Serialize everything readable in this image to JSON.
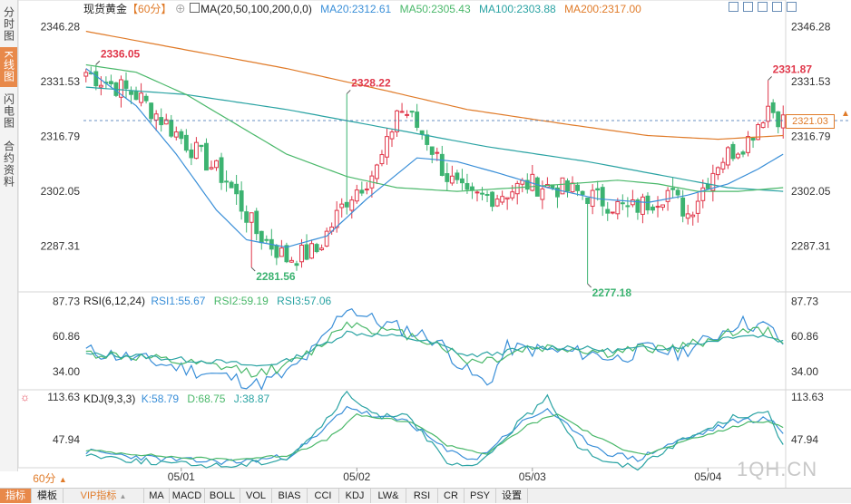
{
  "left_tabs": [
    {
      "label": "分时图",
      "active": false
    },
    {
      "label": "K线图",
      "active": true
    },
    {
      "label": "闪电图",
      "active": false
    },
    {
      "label": "合约资料",
      "active": false
    }
  ],
  "legend": {
    "name": "现货黄金",
    "period": "【60分】",
    "ma_label": "MA(20,50,100,200,0,0)",
    "ma20": "MA20:2312.61",
    "ma50": "MA50:2305.43",
    "ma100": "MA100:2303.88",
    "ma200": "MA200:2317.00"
  },
  "rsi_legend": {
    "label": "RSI(6,12,24)",
    "rsi1": "RSI1:55.67",
    "rsi2": "RSI2:59.19",
    "rsi3": "RSI3:57.06"
  },
  "kdj_legend": {
    "label": "KDJ(9,3,3)",
    "k": "K:58.79",
    "d": "D:68.75",
    "j": "J:38.87"
  },
  "current_price": "2321.03",
  "period_selector": "60分",
  "watermark": "1QH.CN",
  "bottom_tabs": [
    {
      "label": "指标",
      "active": true
    },
    {
      "label": "模板",
      "active": false
    },
    {
      "label": "VIP指标",
      "active": false,
      "orange": true
    },
    {
      "label": "MA",
      "active": false
    },
    {
      "label": "MACD",
      "active": false
    },
    {
      "label": "BOLL",
      "active": false
    },
    {
      "label": "VOL",
      "active": false
    },
    {
      "label": "BIAS",
      "active": false
    },
    {
      "label": "CCI",
      "active": false
    },
    {
      "label": "KDJ",
      "active": false
    },
    {
      "label": "LW&",
      "active": false
    },
    {
      "label": "RSI",
      "active": false
    },
    {
      "label": "CR",
      "active": false
    },
    {
      "label": "PSY",
      "active": false
    },
    {
      "label": "设置",
      "active": false
    }
  ],
  "colors": {
    "up": "#e0374a",
    "down": "#3cb371",
    "ma20": "#3a8fd8",
    "ma50": "#4ab86a",
    "ma100": "#2aa3a3",
    "ma200": "#e07b29",
    "rsi1": "#3a8fd8",
    "rsi2": "#4ab86a",
    "rsi3": "#2aa3a3",
    "k": "#3a8fd8",
    "d": "#4ab86a",
    "j": "#2aa3a3"
  },
  "chart_data": [
    {
      "type": "candlestick",
      "title": "现货黄金",
      "yticks": [
        2346.28,
        2331.53,
        2316.79,
        2302.05,
        2287.31
      ],
      "ylim": [
        2275,
        2350
      ],
      "x_ticks": [
        "05/01",
        "05/02",
        "05/03",
        "05/04"
      ],
      "annotations": [
        {
          "text": "2336.05",
          "value": 2336.05,
          "candle": 2,
          "color": "up"
        },
        {
          "text": "2328.22",
          "value": 2328.22,
          "candle": 52,
          "color": "up"
        },
        {
          "text": "2331.87",
          "value": 2331.87,
          "candle": 136,
          "color": "up"
        },
        {
          "text": "2281.56",
          "value": 2281.56,
          "candle": 33,
          "color": "down"
        },
        {
          "text": "2277.18",
          "value": 2277.18,
          "candle": 100,
          "color": "down"
        }
      ],
      "close_anchors": [
        [
          0,
          2334
        ],
        [
          3,
          2332
        ],
        [
          10,
          2328
        ],
        [
          20,
          2315
        ],
        [
          28,
          2305
        ],
        [
          34,
          2291
        ],
        [
          40,
          2284
        ],
        [
          46,
          2286
        ],
        [
          52,
          2300
        ],
        [
          58,
          2308
        ],
        [
          60,
          2314
        ],
        [
          62,
          2324
        ],
        [
          64,
          2323
        ],
        [
          68,
          2316
        ],
        [
          72,
          2306
        ],
        [
          76,
          2300
        ],
        [
          82,
          2301
        ],
        [
          88,
          2304
        ],
        [
          94,
          2303
        ],
        [
          100,
          2301
        ],
        [
          104,
          2299
        ],
        [
          108,
          2297
        ],
        [
          112,
          2299
        ],
        [
          116,
          2302
        ],
        [
          120,
          2296
        ],
        [
          126,
          2310
        ],
        [
          132,
          2316
        ],
        [
          136,
          2325
        ],
        [
          139,
          2321
        ]
      ],
      "ma20_anchors": [
        [
          0,
          2335
        ],
        [
          10,
          2325
        ],
        [
          18,
          2312
        ],
        [
          26,
          2297
        ],
        [
          32,
          2289
        ],
        [
          40,
          2287
        ],
        [
          48,
          2290
        ],
        [
          56,
          2300
        ],
        [
          66,
          2311
        ],
        [
          74,
          2310
        ],
        [
          82,
          2307
        ],
        [
          92,
          2303
        ],
        [
          102,
          2300
        ],
        [
          112,
          2299
        ],
        [
          120,
          2301
        ],
        [
          128,
          2304
        ],
        [
          134,
          2308
        ],
        [
          139,
          2312
        ]
      ],
      "ma50_anchors": [
        [
          0,
          2336
        ],
        [
          10,
          2334
        ],
        [
          20,
          2328
        ],
        [
          30,
          2320
        ],
        [
          40,
          2312
        ],
        [
          52,
          2306
        ],
        [
          62,
          2303
        ],
        [
          74,
          2302
        ],
        [
          86,
          2303
        ],
        [
          96,
          2304
        ],
        [
          106,
          2305
        ],
        [
          114,
          2304
        ],
        [
          122,
          2302
        ],
        [
          130,
          2302
        ],
        [
          139,
          2303
        ]
      ],
      "ma100_anchors": [
        [
          0,
          2330
        ],
        [
          20,
          2328
        ],
        [
          40,
          2324
        ],
        [
          60,
          2319
        ],
        [
          80,
          2314
        ],
        [
          100,
          2310
        ],
        [
          116,
          2306
        ],
        [
          128,
          2303
        ],
        [
          139,
          2302
        ]
      ],
      "ma200_anchors": [
        [
          0,
          2345
        ],
        [
          20,
          2340
        ],
        [
          40,
          2335
        ],
        [
          60,
          2329
        ],
        [
          76,
          2324
        ],
        [
          96,
          2320
        ],
        [
          112,
          2317
        ],
        [
          126,
          2316
        ],
        [
          139,
          2317
        ]
      ]
    },
    {
      "type": "line",
      "title": "RSI(6,12,24)",
      "yticks": [
        87.73,
        60.86,
        34.0
      ],
      "ylim": [
        20,
        95
      ],
      "series": [
        {
          "name": "RSI1",
          "values_anchors": [
            [
              0,
              50
            ],
            [
              10,
              44
            ],
            [
              20,
              36
            ],
            [
              28,
              30
            ],
            [
              34,
              24
            ],
            [
              40,
              32
            ],
            [
              46,
              52
            ],
            [
              52,
              84
            ],
            [
              58,
              72
            ],
            [
              64,
              66
            ],
            [
              70,
              58
            ],
            [
              76,
              34
            ],
            [
              80,
              24
            ],
            [
              84,
              52
            ],
            [
              92,
              50
            ],
            [
              100,
              48
            ],
            [
              106,
              44
            ],
            [
              112,
              52
            ],
            [
              118,
              48
            ],
            [
              124,
              58
            ],
            [
              130,
              72
            ],
            [
              136,
              68
            ],
            [
              139,
              56
            ]
          ]
        },
        {
          "name": "RSI2",
          "values_anchors": [
            [
              0,
              48
            ],
            [
              10,
              45
            ],
            [
              20,
              40
            ],
            [
              28,
              37
            ],
            [
              34,
              33
            ],
            [
              40,
              38
            ],
            [
              46,
              52
            ],
            [
              52,
              72
            ],
            [
              58,
              66
            ],
            [
              64,
              62
            ],
            [
              70,
              56
            ],
            [
              76,
              42
            ],
            [
              82,
              44
            ],
            [
              88,
              52
            ],
            [
              96,
              52
            ],
            [
              104,
              48
            ],
            [
              112,
              52
            ],
            [
              118,
              52
            ],
            [
              124,
              58
            ],
            [
              130,
              66
            ],
            [
              136,
              64
            ],
            [
              139,
              59
            ]
          ]
        },
        {
          "name": "RSI3",
          "values_anchors": [
            [
              0,
              47
            ],
            [
              10,
              46
            ],
            [
              20,
              43
            ],
            [
              28,
              41
            ],
            [
              34,
              38
            ],
            [
              40,
              42
            ],
            [
              46,
              52
            ],
            [
              52,
              64
            ],
            [
              58,
              62
            ],
            [
              64,
              60
            ],
            [
              70,
              55
            ],
            [
              76,
              46
            ],
            [
              82,
              48
            ],
            [
              88,
              52
            ],
            [
              96,
              53
            ],
            [
              104,
              50
            ],
            [
              112,
              52
            ],
            [
              118,
              53
            ],
            [
              124,
              57
            ],
            [
              130,
              62
            ],
            [
              136,
              61
            ],
            [
              139,
              57
            ]
          ]
        }
      ]
    },
    {
      "type": "line",
      "title": "KDJ(9,3,3)",
      "yticks": [
        113.63,
        47.94
      ],
      "ylim": [
        5,
        125
      ],
      "series": [
        {
          "name": "K",
          "values_anchors": [
            [
              0,
              30
            ],
            [
              10,
              22
            ],
            [
              20,
              16
            ],
            [
              30,
              14
            ],
            [
              40,
              22
            ],
            [
              46,
              52
            ],
            [
              52,
              100
            ],
            [
              58,
              82
            ],
            [
              64,
              78
            ],
            [
              72,
              30
            ],
            [
              78,
              18
            ],
            [
              86,
              70
            ],
            [
              92,
              96
            ],
            [
              98,
              54
            ],
            [
              104,
              28
            ],
            [
              110,
              18
            ],
            [
              116,
              40
            ],
            [
              122,
              56
            ],
            [
              130,
              78
            ],
            [
              136,
              80
            ],
            [
              139,
              59
            ]
          ]
        },
        {
          "name": "D",
          "values_anchors": [
            [
              0,
              32
            ],
            [
              10,
              26
            ],
            [
              20,
              20
            ],
            [
              30,
              18
            ],
            [
              40,
              24
            ],
            [
              48,
              48
            ],
            [
              54,
              86
            ],
            [
              60,
              80
            ],
            [
              66,
              72
            ],
            [
              72,
              40
            ],
            [
              80,
              26
            ],
            [
              88,
              70
            ],
            [
              94,
              88
            ],
            [
              100,
              60
            ],
            [
              106,
              36
            ],
            [
              112,
              26
            ],
            [
              118,
              42
            ],
            [
              124,
              56
            ],
            [
              132,
              74
            ],
            [
              136,
              76
            ],
            [
              139,
              69
            ]
          ]
        },
        {
          "name": "J",
          "values_anchors": [
            [
              0,
              26
            ],
            [
              10,
              16
            ],
            [
              20,
              10
            ],
            [
              30,
              8
            ],
            [
              40,
              20
            ],
            [
              46,
              60
            ],
            [
              52,
              118
            ],
            [
              58,
              84
            ],
            [
              64,
              90
            ],
            [
              72,
              10
            ],
            [
              78,
              6
            ],
            [
              86,
              72
            ],
            [
              92,
              112
            ],
            [
              98,
              40
            ],
            [
              104,
              12
            ],
            [
              110,
              6
            ],
            [
              116,
              36
            ],
            [
              122,
              58
            ],
            [
              130,
              86
            ],
            [
              136,
              88
            ],
            [
              139,
              39
            ]
          ]
        }
      ]
    }
  ]
}
